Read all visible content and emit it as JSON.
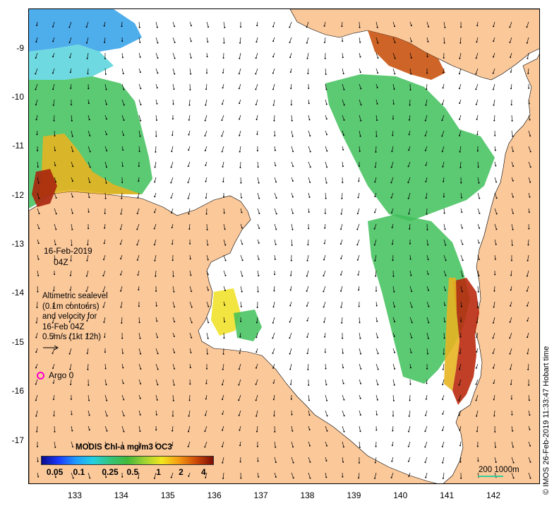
{
  "map": {
    "title_date": "16-Feb-2019",
    "title_time": "04Z",
    "legend_lines": [
      "Altimetric sealevel",
      "(0.1m contours)",
      "and velocity for",
      "16-Feb 04Z",
      "0.5m/s (1kt 12h)"
    ],
    "argo_label": "Argo 0",
    "colorbar_title": "MODIS Chl-a mg/m3 OC3",
    "colorbar_ticks": [
      "0.05",
      "0.1",
      "0.25",
      "0.5",
      "1",
      "2",
      "4"
    ],
    "scale_label": "200  1000m",
    "credit": "© IMOS 26-Feb-2019 11:33:47 Hobart time",
    "x_ticks": [
      "133",
      "134",
      "135",
      "136",
      "137",
      "138",
      "139",
      "140",
      "141",
      "142"
    ],
    "y_ticks": [
      "-9",
      "-10",
      "-11",
      "-12",
      "-13",
      "-14",
      "-15",
      "-16",
      "-17"
    ],
    "x_range": [
      132.0,
      143.0
    ],
    "y_range": [
      -17.9,
      -8.2
    ],
    "colors": {
      "land": "#fbc89a",
      "ocean": "#ffffff",
      "chl_low": "#0a0a8c",
      "chl_mid": "#42b83a",
      "chl_high": "#7a0d05",
      "argo": "#ff00cc",
      "scale_bar": "#33cc99"
    }
  }
}
